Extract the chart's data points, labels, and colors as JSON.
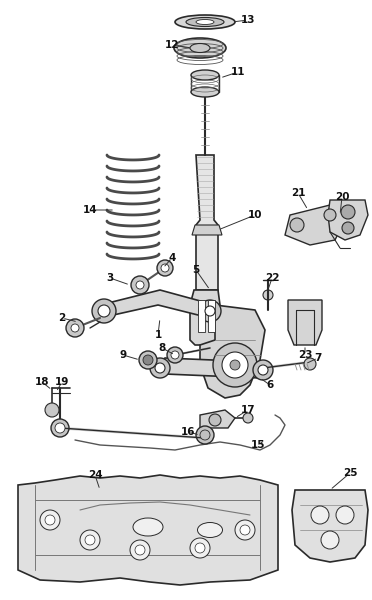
{
  "bg_color": "#ffffff",
  "line_color": "#2a2a2a",
  "label_color": "#111111",
  "fig_width": 3.72,
  "fig_height": 6.0,
  "dpi": 100
}
